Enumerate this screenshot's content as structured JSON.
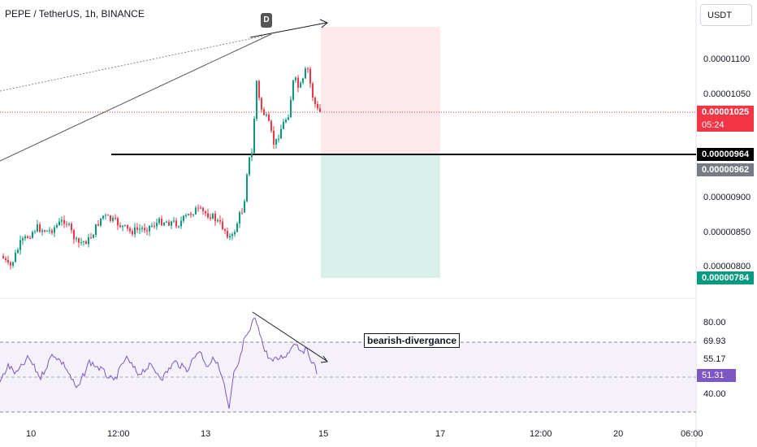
{
  "header": {
    "title": "PEPE / TetherUS, 1h, BINANCE"
  },
  "currency_button": {
    "label": "USDT"
  },
  "marker": {
    "label": "D"
  },
  "annotation": {
    "text": "bearish-divergance"
  },
  "price_axis": {
    "ticks": [
      "0.00001100",
      "0.00001050",
      "0.00000900",
      "0.00000850",
      "0.00000800"
    ],
    "current_price": "0.00001025",
    "countdown": "05:24",
    "level_line": "0.00000964",
    "crosshair_price": "0.00000962",
    "target_price": "0.00000784"
  },
  "rsi_axis": {
    "ticks": [
      "80.00",
      "69.93",
      "55.17",
      "40.00"
    ],
    "current": "51.31"
  },
  "time_axis": {
    "ticks": [
      "10",
      "12:00",
      "13",
      "15",
      "17",
      "12:00",
      "20",
      "06:00"
    ]
  },
  "colors": {
    "up": "#089981",
    "down": "#f23645",
    "rsi": "#7e57c2",
    "stop_zone": "#fde9ec",
    "target_zone": "#d9efe9",
    "level": "#000000"
  }
}
